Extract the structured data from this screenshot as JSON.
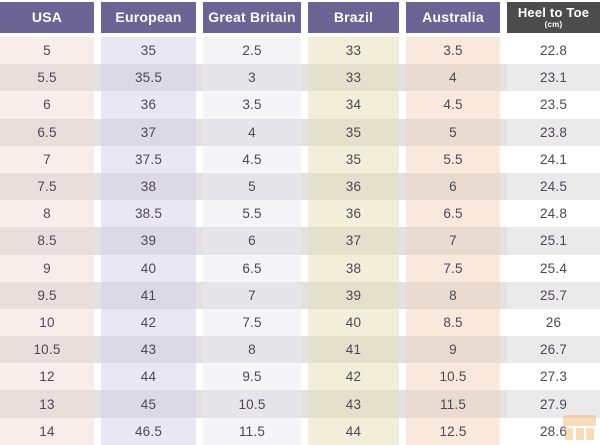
{
  "chart_data": {
    "type": "table",
    "columns": [
      {
        "label": "USA"
      },
      {
        "label": "European"
      },
      {
        "label": "Great Britain"
      },
      {
        "label": "Brazil"
      },
      {
        "label": "Australia"
      },
      {
        "label": "Heel to Toe",
        "sublabel": "(cm)"
      }
    ],
    "rows": [
      [
        "5",
        "35",
        "2.5",
        "33",
        "3.5",
        "22.8"
      ],
      [
        "5.5",
        "35.5",
        "3",
        "33",
        "4",
        "23.1"
      ],
      [
        "6",
        "36",
        "3.5",
        "34",
        "4.5",
        "23.5"
      ],
      [
        "6.5",
        "37",
        "4",
        "35",
        "5",
        "23.8"
      ],
      [
        "7",
        "37.5",
        "4.5",
        "35",
        "5.5",
        "24.1"
      ],
      [
        "7.5",
        "38",
        "5",
        "36",
        "6",
        "24.5"
      ],
      [
        "8",
        "38.5",
        "5.5",
        "36",
        "6.5",
        "24.8"
      ],
      [
        "8.5",
        "39",
        "6",
        "37",
        "7",
        "25.1"
      ],
      [
        "9",
        "40",
        "6.5",
        "38",
        "7.5",
        "25.4"
      ],
      [
        "9.5",
        "41",
        "7",
        "39",
        "8",
        "25.7"
      ],
      [
        "10",
        "42",
        "7.5",
        "40",
        "8.5",
        "26"
      ],
      [
        "10.5",
        "43",
        "8",
        "41",
        "9",
        "26.7"
      ],
      [
        "12",
        "44",
        "9.5",
        "42",
        "10.5",
        "27.3"
      ],
      [
        "13",
        "45",
        "10.5",
        "43",
        "11.5",
        "27.9"
      ],
      [
        "14",
        "46.5",
        "11.5",
        "44",
        "12.5",
        "28.6"
      ]
    ],
    "layout_hints": {
      "striped_rows": true,
      "header_style": "purple for size columns, dark gray for measurement column"
    }
  },
  "colors": {
    "header_purple": "#6c6494",
    "header_dark": "#4c4c4c",
    "header_text": "#ffffff",
    "cell_text": "#4e4754",
    "stripe_gray": "#e3e1e2",
    "col_usa_tint": "#f9edeb",
    "col_european_tint": "#e9e7f3",
    "col_great_britain_tint": "#f5f4f7",
    "col_brazil_tint": "#f1efd9",
    "col_australia_tint": "#f8e9dc",
    "col_heel_to_toe_tint": "#ffffff",
    "watermark_orange": "#f0a658"
  },
  "icons": {
    "watermark": "store-logo-watermark-icon"
  }
}
